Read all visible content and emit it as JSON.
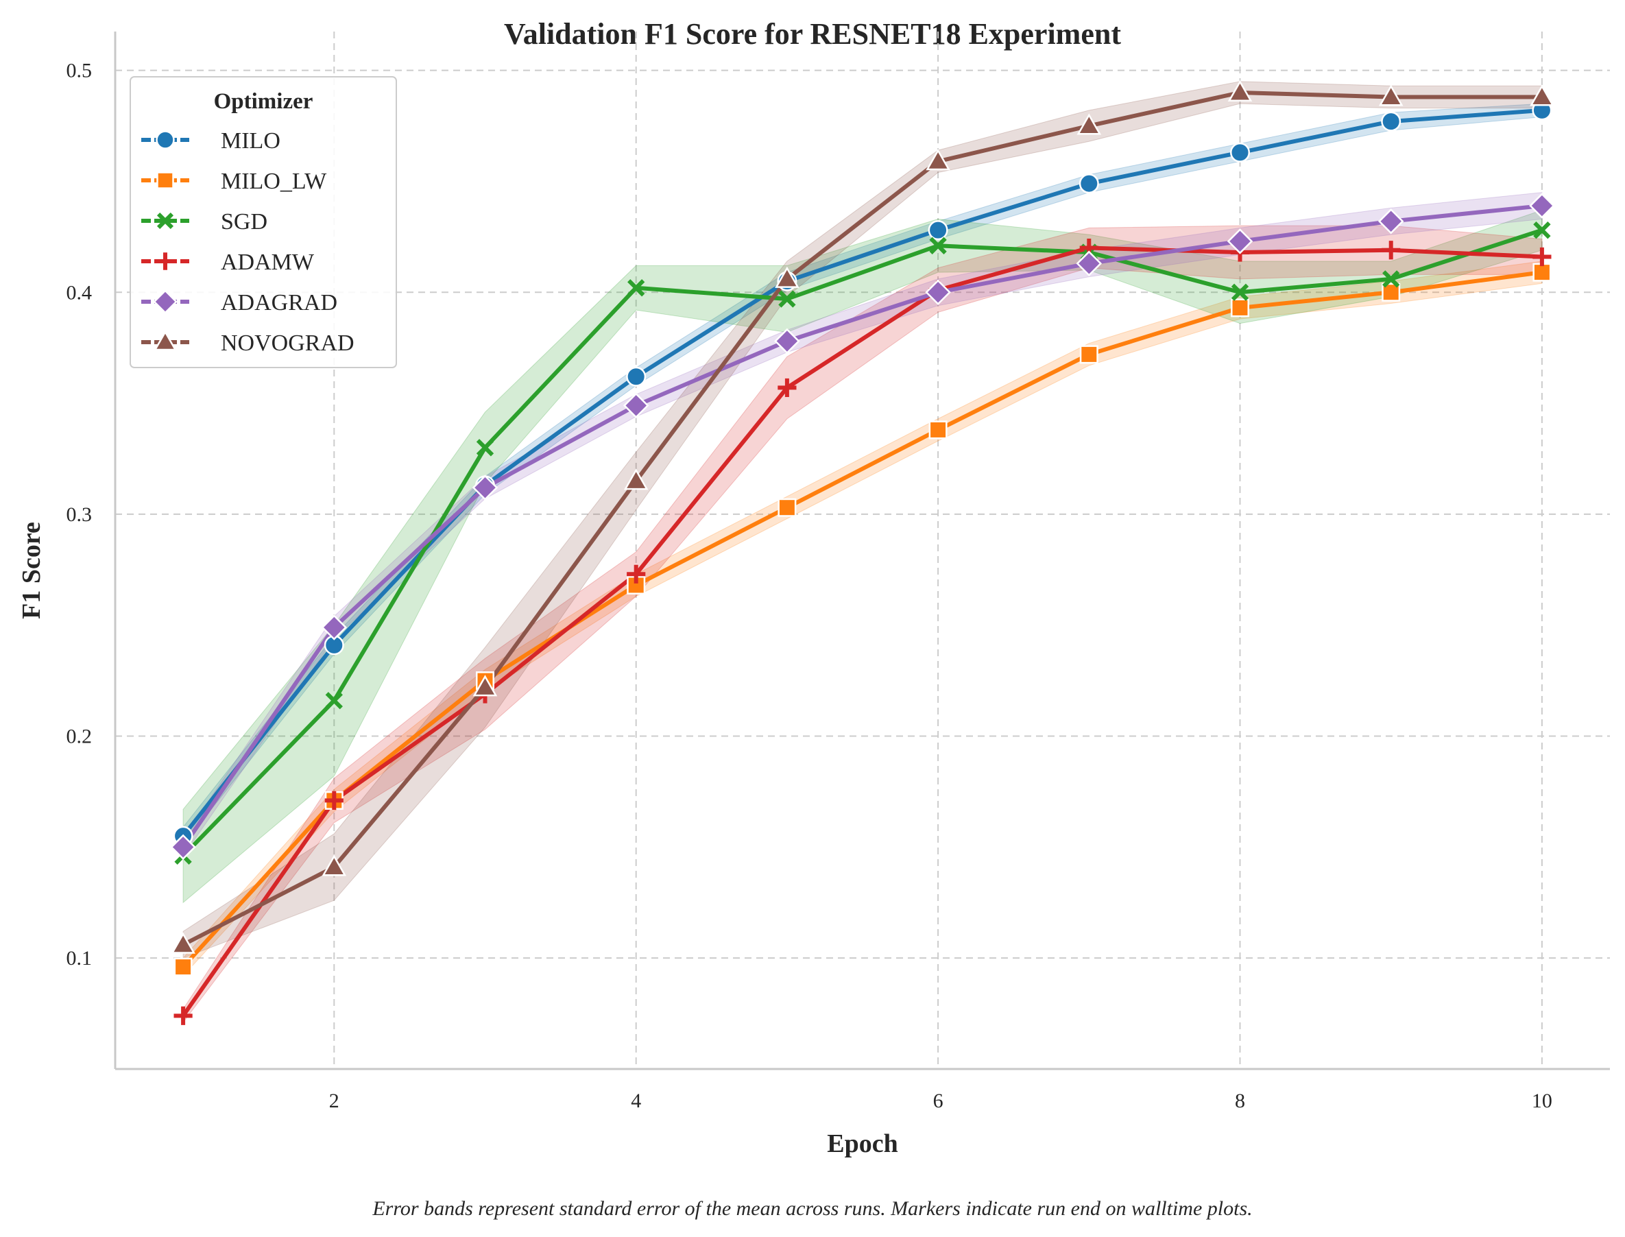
{
  "chart_data": {
    "type": "line",
    "title": "Validation F1 Score for RESNET18 Experiment",
    "xlabel": "Epoch",
    "ylabel": "F1 Score",
    "caption": "Error bands represent standard error of the mean across runs. Markers indicate run end on walltime plots.",
    "xlim": [
      0.55,
      10.45
    ],
    "ylim": [
      0.05,
      0.5175
    ],
    "xticks": [
      2,
      4,
      6,
      8,
      10
    ],
    "yticks": [
      0.1,
      0.2,
      0.3,
      0.4,
      0.5
    ],
    "xtick_labels": [
      "2",
      "4",
      "6",
      "8",
      "10"
    ],
    "ytick_labels": [
      "0.1",
      "0.2",
      "0.3",
      "0.4",
      "0.5"
    ],
    "grid": true,
    "legend": {
      "title": "Optimizer",
      "placement": "top-left"
    },
    "x": [
      1,
      2,
      3,
      4,
      5,
      6,
      7,
      8,
      9,
      10
    ],
    "series": [
      {
        "name": "MILO",
        "color": "#1f77b4",
        "marker": "circle",
        "values": [
          0.155,
          0.241,
          0.313,
          0.362,
          0.405,
          0.428,
          0.449,
          0.463,
          0.477,
          0.482
        ],
        "err": [
          0.004,
          0.004,
          0.004,
          0.004,
          0.004,
          0.004,
          0.004,
          0.004,
          0.004,
          0.003
        ]
      },
      {
        "name": "MILO_LW",
        "color": "#ff7f0e",
        "marker": "square",
        "values": [
          0.096,
          0.171,
          0.225,
          0.268,
          0.303,
          0.338,
          0.372,
          0.393,
          0.4,
          0.409
        ],
        "err": [
          0.004,
          0.005,
          0.005,
          0.005,
          0.005,
          0.005,
          0.005,
          0.005,
          0.005,
          0.005
        ]
      },
      {
        "name": "SGD",
        "color": "#2ca02c",
        "marker": "x",
        "values": [
          0.146,
          0.216,
          0.33,
          0.402,
          0.397,
          0.421,
          0.418,
          0.4,
          0.406,
          0.428
        ],
        "err": [
          0.021,
          0.034,
          0.016,
          0.01,
          0.015,
          0.012,
          0.008,
          0.014,
          0.008,
          0.009
        ]
      },
      {
        "name": "ADAMW",
        "color": "#d62728",
        "marker": "plus",
        "values": [
          0.074,
          0.171,
          0.219,
          0.273,
          0.357,
          0.401,
          0.42,
          0.418,
          0.419,
          0.416
        ],
        "err": [
          0.003,
          0.01,
          0.016,
          0.01,
          0.014,
          0.01,
          0.009,
          0.012,
          0.011,
          0.008
        ]
      },
      {
        "name": "ADAGRAD",
        "color": "#9467bd",
        "marker": "diamond",
        "values": [
          0.15,
          0.249,
          0.312,
          0.349,
          0.378,
          0.4,
          0.413,
          0.423,
          0.432,
          0.439
        ],
        "err": [
          0.004,
          0.005,
          0.005,
          0.005,
          0.005,
          0.006,
          0.006,
          0.006,
          0.006,
          0.006
        ]
      },
      {
        "name": "NOVOGRAD",
        "color": "#8c564b",
        "marker": "triangle",
        "values": [
          0.106,
          0.141,
          0.222,
          0.315,
          0.406,
          0.459,
          0.475,
          0.49,
          0.488,
          0.488
        ],
        "err": [
          0.006,
          0.015,
          0.018,
          0.013,
          0.008,
          0.005,
          0.007,
          0.005,
          0.005,
          0.005
        ]
      }
    ]
  }
}
